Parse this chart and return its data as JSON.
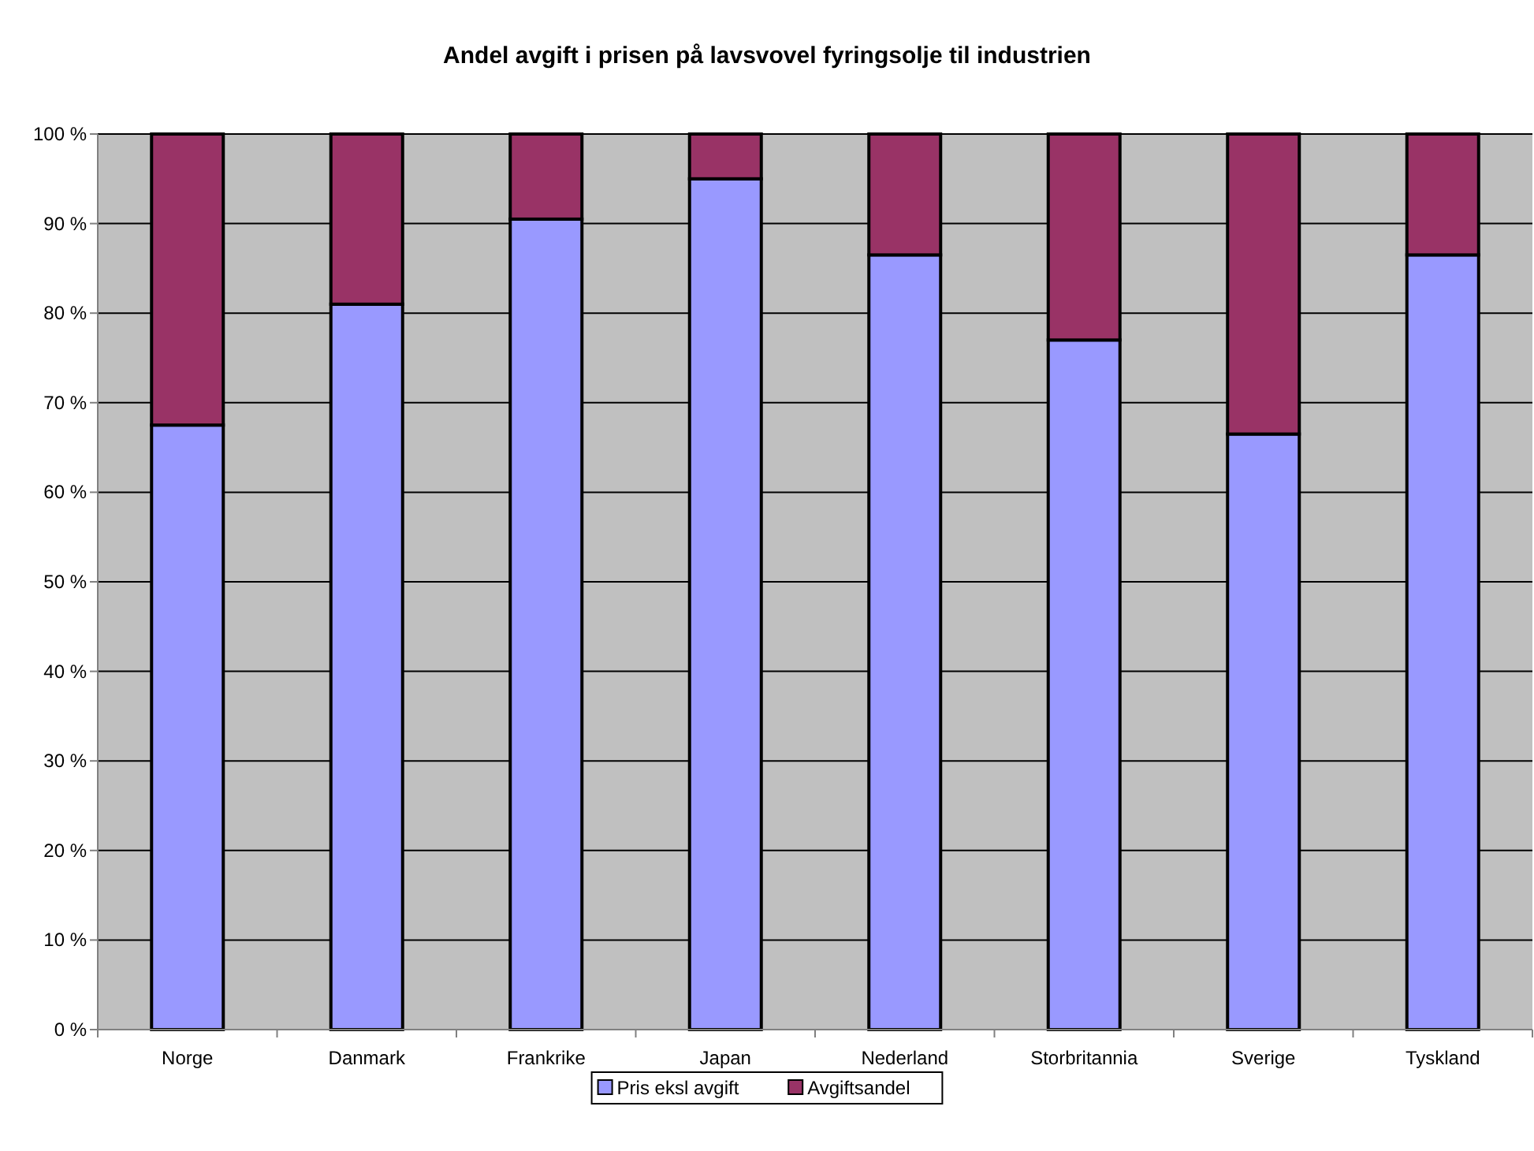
{
  "chart_data": {
    "type": "bar",
    "title": "Andel avgift i prisen på lavsvovel fyringsolje til industrien",
    "categories": [
      "Norge",
      "Danmark",
      "Frankrike",
      "Japan",
      "Nederland",
      "Storbritannia",
      "Sverige",
      "Tyskland"
    ],
    "stacked": true,
    "series": [
      {
        "name": "Pris eksl avgift",
        "color": "#9999ff",
        "values": [
          67.5,
          81,
          90.5,
          95,
          86.5,
          77,
          66.5,
          86.5
        ]
      },
      {
        "name": "Avgiftsandel",
        "color": "#993366",
        "values": [
          32.5,
          19,
          9.5,
          5,
          13.5,
          23,
          33.5,
          13.5
        ]
      }
    ],
    "ylim": [
      0,
      100
    ],
    "yticks": [
      {
        "value": 0,
        "label": "0 %"
      },
      {
        "value": 10,
        "label": "10 %"
      },
      {
        "value": 20,
        "label": "20 %"
      },
      {
        "value": 30,
        "label": "30 %"
      },
      {
        "value": 40,
        "label": "40 %"
      },
      {
        "value": 50,
        "label": "50 %"
      },
      {
        "value": 60,
        "label": "60 %"
      },
      {
        "value": 70,
        "label": "70 %"
      },
      {
        "value": 80,
        "label": "80 %"
      },
      {
        "value": 90,
        "label": "90 %"
      },
      {
        "value": 100,
        "label": "100 %"
      }
    ],
    "grid": "y",
    "legend": "bottom"
  }
}
